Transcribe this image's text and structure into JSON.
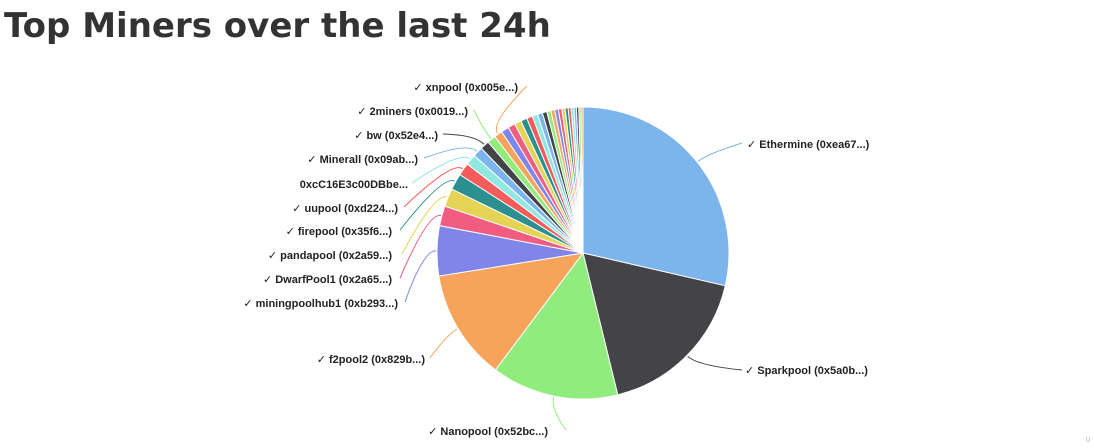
{
  "title": "Top Miners over the last 24h",
  "chart_data": {
    "type": "pie",
    "title": "Top Miners over the last 24h",
    "slices": [
      {
        "label": "✓ Ethermine (0xea67...)",
        "value": 28.5,
        "color": "#7cb5ec",
        "labeled": true
      },
      {
        "label": "✓ Sparkpool (0x5a0b...)",
        "value": 17.5,
        "color": "#434348",
        "labeled": true
      },
      {
        "label": "✓ Nanopool (0x52bc...)",
        "value": 14.0,
        "color": "#90ed7d",
        "labeled": true
      },
      {
        "label": "✓ f2pool2 (0x829b...)",
        "value": 12.2,
        "color": "#f7a35c",
        "labeled": true
      },
      {
        "label": "✓ miningpoolhub1 (0xb293...)",
        "value": 5.5,
        "color": "#8085e9",
        "labeled": true
      },
      {
        "label": "✓ DwarfPool1 (0x2a65...)",
        "value": 2.2,
        "color": "#f15c80",
        "labeled": true
      },
      {
        "label": "✓ pandapool (0x2a59...)",
        "value": 2.0,
        "color": "#e4d354",
        "labeled": true
      },
      {
        "label": "✓ firepool (0x35f6...)",
        "value": 1.8,
        "color": "#2b908f",
        "labeled": true
      },
      {
        "label": "✓ uupool (0xd224...)",
        "value": 1.4,
        "color": "#f45b5b",
        "labeled": true
      },
      {
        "label": "0xcC16E3c00DBbe...",
        "value": 1.2,
        "color": "#91e8e1",
        "labeled": true
      },
      {
        "label": "✓ Minerall (0x09ab...)",
        "value": 1.1,
        "color": "#7cb5ec",
        "labeled": true
      },
      {
        "label": "✓ bw (0x52e4...)",
        "value": 1.0,
        "color": "#434348",
        "labeled": true
      },
      {
        "label": "✓ 2miners (0x0019...)",
        "value": 0.95,
        "color": "#90ed7d",
        "labeled": true
      },
      {
        "label": "✓ xnpool (0x005e...)",
        "value": 0.9,
        "color": "#f7a35c",
        "labeled": true
      },
      {
        "label": "",
        "value": 0.85,
        "color": "#8085e9",
        "labeled": false
      },
      {
        "label": "",
        "value": 0.8,
        "color": "#f15c80",
        "labeled": false
      },
      {
        "label": "",
        "value": 0.75,
        "color": "#e4d354",
        "labeled": false
      },
      {
        "label": "",
        "value": 0.7,
        "color": "#2b908f",
        "labeled": false
      },
      {
        "label": "",
        "value": 0.65,
        "color": "#f45b5b",
        "labeled": false
      },
      {
        "label": "",
        "value": 0.6,
        "color": "#91e8e1",
        "labeled": false
      },
      {
        "label": "",
        "value": 0.55,
        "color": "#7cb5ec",
        "labeled": false
      },
      {
        "label": "",
        "value": 0.5,
        "color": "#434348",
        "labeled": false
      },
      {
        "label": "",
        "value": 0.45,
        "color": "#90ed7d",
        "labeled": false
      },
      {
        "label": "",
        "value": 0.42,
        "color": "#f7a35c",
        "labeled": false
      },
      {
        "label": "",
        "value": 0.4,
        "color": "#8085e9",
        "labeled": false
      },
      {
        "label": "",
        "value": 0.38,
        "color": "#f15c80",
        "labeled": false
      },
      {
        "label": "",
        "value": 0.36,
        "color": "#e4d354",
        "labeled": false
      },
      {
        "label": "",
        "value": 0.34,
        "color": "#2b908f",
        "labeled": false
      },
      {
        "label": "",
        "value": 0.32,
        "color": "#f45b5b",
        "labeled": false
      },
      {
        "label": "",
        "value": 0.3,
        "color": "#91e8e1",
        "labeled": false
      },
      {
        "label": "",
        "value": 0.28,
        "color": "#7cb5ec",
        "labeled": false
      },
      {
        "label": "",
        "value": 0.26,
        "color": "#434348",
        "labeled": false
      },
      {
        "label": "",
        "value": 0.24,
        "color": "#90ed7d",
        "labeled": false
      },
      {
        "label": "",
        "value": 0.22,
        "color": "#f7a35c",
        "labeled": false
      }
    ]
  }
}
